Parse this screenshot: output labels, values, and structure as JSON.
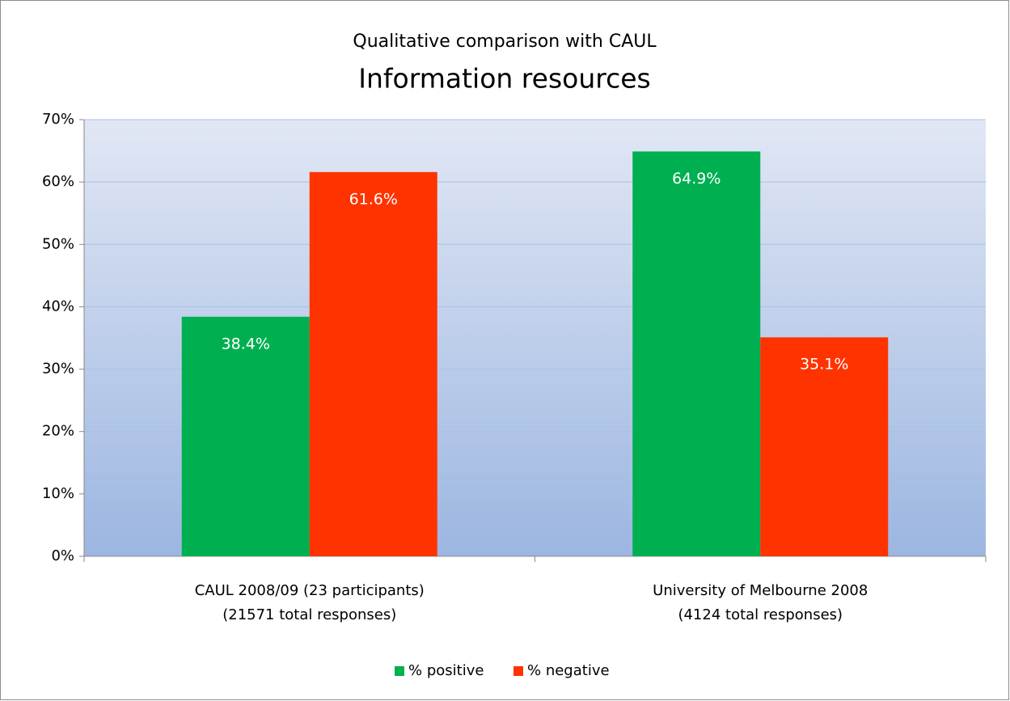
{
  "chart_data": {
    "type": "bar",
    "title": "Qualitative comparison with CAUL",
    "subtitle": "Information resources",
    "categories": [
      [
        "CAUL 2008/09 (23 participants)",
        "(21571 total responses)"
      ],
      [
        "University of Melbourne 2008",
        "(4124 total responses)"
      ]
    ],
    "series": [
      {
        "name": "% positive",
        "color": "#00b050",
        "values": [
          38.4,
          64.9
        ],
        "value_labels": [
          "38.4%",
          "64.9%"
        ]
      },
      {
        "name": "% negative",
        "color": "#ff3300",
        "values": [
          61.6,
          35.1
        ],
        "value_labels": [
          "61.6%",
          "35.1%"
        ]
      }
    ],
    "ylim": [
      0,
      70
    ],
    "yticks": [
      {
        "value": 0,
        "label": "0%"
      },
      {
        "value": 10,
        "label": "10%"
      },
      {
        "value": 20,
        "label": "20%"
      },
      {
        "value": 30,
        "label": "30%"
      },
      {
        "value": 40,
        "label": "40%"
      },
      {
        "value": 50,
        "label": "50%"
      },
      {
        "value": 60,
        "label": "60%"
      },
      {
        "value": 70,
        "label": "70%"
      }
    ],
    "grid": true,
    "legend": "bottom"
  }
}
